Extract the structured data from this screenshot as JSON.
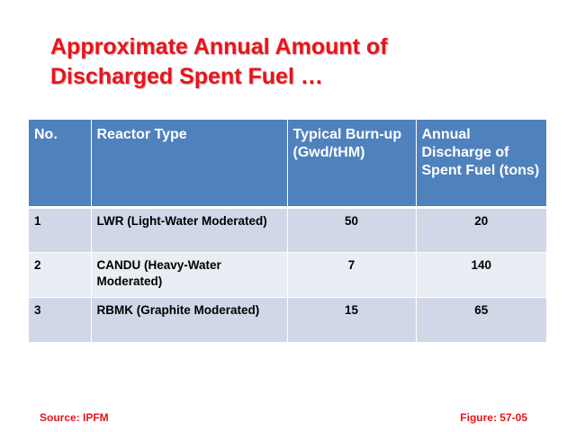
{
  "title": {
    "line1": "Approximate Annual Amount of",
    "line2": "Discharged Spent Fuel …"
  },
  "table": {
    "headers": [
      "No.",
      "Reactor Type",
      "Typical Burn-up (Gwd/tHM)",
      "Annual Discharge of Spent Fuel (tons)"
    ],
    "rows": [
      {
        "no": "1",
        "type": "LWR (Light-Water Moderated)",
        "burnup": "50",
        "discharge": "20"
      },
      {
        "no": "2",
        "type": "CANDU (Heavy-Water Moderated)",
        "burnup": "7",
        "discharge": "140"
      },
      {
        "no": "3",
        "type": "RBMK (Graphite Moderated)",
        "burnup": "15",
        "discharge": "65"
      }
    ]
  },
  "footer": {
    "source": "Source: IPFM",
    "figure": "Figure: 57-05"
  },
  "colors": {
    "title": "#e8141b",
    "header_bg": "#4f81bd",
    "row_odd": "#d0d8e8",
    "row_even": "#e9edf4"
  }
}
